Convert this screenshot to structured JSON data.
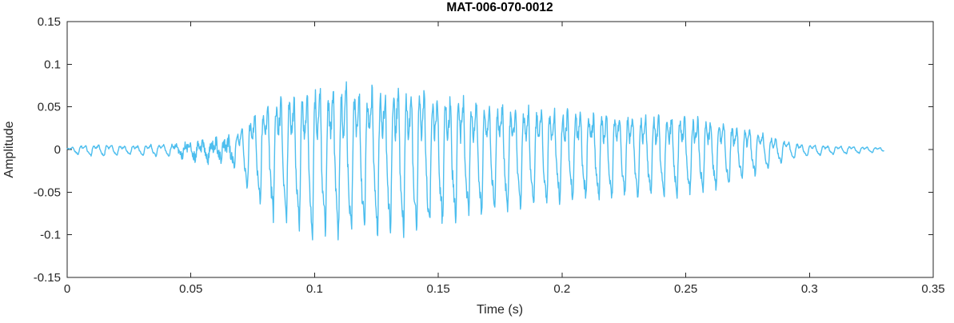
{
  "chart_data": {
    "type": "line",
    "title": "MAT-006-070-0012",
    "xlabel": "Time (s)",
    "ylabel": "Amplitude",
    "xlim": [
      0,
      0.35
    ],
    "ylim": [
      -0.15,
      0.15
    ],
    "xticks": [
      0,
      0.05,
      0.1,
      0.15,
      0.2,
      0.25,
      0.3,
      0.35
    ],
    "xtick_labels": [
      "0",
      "0.05",
      "0.1",
      "0.15",
      "0.2",
      "0.25",
      "0.3",
      "0.35"
    ],
    "yticks": [
      -0.15,
      -0.1,
      -0.05,
      0,
      0.05,
      0.1,
      0.15
    ],
    "ytick_labels": [
      "-0.15",
      "-0.1",
      "-0.05",
      "0",
      "0.05",
      "0.1",
      "0.15"
    ],
    "grid": false,
    "line_color": "#4DBEEE",
    "axis_color": "#262626",
    "background_color": "#ffffff",
    "series": [
      {
        "name": "waveform",
        "signal": {
          "t_start": 0.0,
          "t_end": 0.33,
          "sample_rate": 6000,
          "fundamental_hz": 190,
          "harmonics": [
            [
              1,
              1.0,
              0.0
            ],
            [
              2,
              0.5,
              1.6
            ],
            [
              3,
              0.3,
              0.8
            ],
            [
              4,
              0.12,
              2.5
            ],
            [
              6,
              0.08,
              4.0
            ]
          ],
          "noise_level": 0.12,
          "peak_amplitude": 0.101,
          "trough_amplitude": -0.105,
          "envelope": [
            [
              0.0,
              0.002
            ],
            [
              0.005,
              0.007
            ],
            [
              0.015,
              0.008
            ],
            [
              0.025,
              0.006
            ],
            [
              0.035,
              0.008
            ],
            [
              0.045,
              0.009
            ],
            [
              0.055,
              0.011
            ],
            [
              0.063,
              0.013
            ],
            [
              0.067,
              0.02
            ],
            [
              0.072,
              0.045
            ],
            [
              0.078,
              0.07
            ],
            [
              0.085,
              0.085
            ],
            [
              0.092,
              0.09
            ],
            [
              0.098,
              0.103
            ],
            [
              0.105,
              0.1
            ],
            [
              0.112,
              0.105
            ],
            [
              0.12,
              0.1
            ],
            [
              0.128,
              0.098
            ],
            [
              0.133,
              0.103
            ],
            [
              0.14,
              0.1
            ],
            [
              0.148,
              0.095
            ],
            [
              0.155,
              0.085
            ],
            [
              0.162,
              0.08
            ],
            [
              0.17,
              0.075
            ],
            [
              0.18,
              0.07
            ],
            [
              0.19,
              0.067
            ],
            [
              0.2,
              0.063
            ],
            [
              0.21,
              0.06
            ],
            [
              0.22,
              0.06
            ],
            [
              0.23,
              0.057
            ],
            [
              0.24,
              0.058
            ],
            [
              0.25,
              0.055
            ],
            [
              0.258,
              0.05
            ],
            [
              0.265,
              0.045
            ],
            [
              0.272,
              0.038
            ],
            [
              0.278,
              0.03
            ],
            [
              0.284,
              0.022
            ],
            [
              0.29,
              0.014
            ],
            [
              0.295,
              0.01
            ],
            [
              0.3,
              0.008
            ],
            [
              0.308,
              0.006
            ],
            [
              0.316,
              0.005
            ],
            [
              0.324,
              0.004
            ],
            [
              0.33,
              0.003
            ]
          ],
          "pre_noise": [
            [
              0.04,
              0.0
            ],
            [
              0.048,
              0.005
            ],
            [
              0.06,
              0.008
            ],
            [
              0.066,
              0.009
            ],
            [
              0.069,
              0.0
            ]
          ]
        }
      }
    ]
  }
}
